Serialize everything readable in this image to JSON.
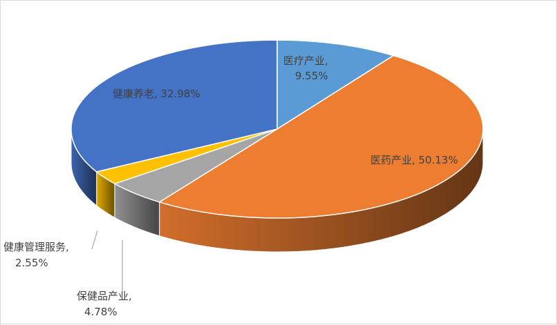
{
  "chart_data": {
    "type": "pie",
    "style": "3d",
    "title": "",
    "slices": [
      {
        "label": "医疗产业",
        "value": 9.55,
        "value_text": "9.55%",
        "color": "#5b9bd5"
      },
      {
        "label": "医药产业",
        "value": 50.13,
        "value_text": "50.13%",
        "color": "#ed7d31"
      },
      {
        "label": "保健品产业",
        "value": 4.78,
        "value_text": "4.78%",
        "color": "#a5a5a5"
      },
      {
        "label": "健康管理服务",
        "value": 2.55,
        "value_text": "2.55%",
        "color": "#ffc000"
      },
      {
        "label": "健康养老",
        "value": 32.98,
        "value_text": "32.98%",
        "color": "#4472c4"
      }
    ],
    "data_labels": [
      {
        "line1": "医疗产业,",
        "line2": "9.55%"
      },
      {
        "line1": "医药产业, 50.13%"
      },
      {
        "line1": "保健品产业,",
        "line2": "4.78%"
      },
      {
        "line1": "健康管理服务,",
        "line2": "2.55%"
      },
      {
        "line1": "健康养老, 32.98%"
      }
    ]
  }
}
